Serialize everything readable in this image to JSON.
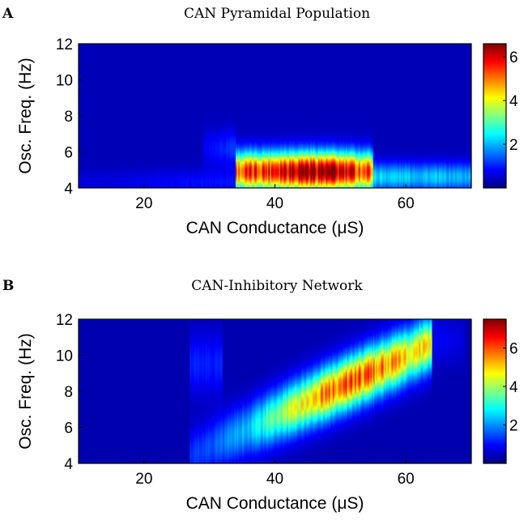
{
  "panels": [
    {
      "letter": "A",
      "title": "CAN Pyramidal Population",
      "xlabel": "CAN Conductance (μS)",
      "ylabel": "Osc. Freq. (Hz)"
    },
    {
      "letter": "B",
      "title": "CAN-Inhibitory Network",
      "xlabel": "CAN Conductance (μS)",
      "ylabel": "Osc. Freq. (Hz)"
    }
  ],
  "chart_data": [
    {
      "type": "heatmap",
      "title": "CAN Pyramidal Population",
      "xlabel": "CAN Conductance (μS)",
      "ylabel": "Osc. Freq. (Hz)",
      "xlim": [
        10,
        70
      ],
      "ylim": [
        4,
        12
      ],
      "xticks": [
        20,
        40,
        60
      ],
      "yticks": [
        4,
        6,
        8,
        10,
        12
      ],
      "colorbar": {
        "range": [
          0,
          6.6
        ],
        "ticks": [
          2,
          4,
          6
        ]
      },
      "colormap": "jet",
      "background_value": 0.35,
      "ridges": [
        {
          "x_start": 10,
          "x_end": 34,
          "peak_freq": 4.3,
          "freq_sd": 0.5,
          "amp_start": 0.2,
          "amp_end": 0.6
        },
        {
          "x_start": 29,
          "x_end": 34,
          "peak_freq": 6.2,
          "freq_sd": 0.7,
          "amp_start": 0.4,
          "amp_end": 0.9
        },
        {
          "x_start": 34,
          "x_end": 55,
          "peak_freq": 4.9,
          "freq_sd": 0.75,
          "amp_start": 4.6,
          "amp_end": 4.6,
          "amp_peak": 6.4,
          "peak_x": 45
        },
        {
          "x_start": 55,
          "x_end": 70,
          "peak_freq": 4.6,
          "freq_sd": 0.55,
          "amp_start": 1.9,
          "amp_end": 1.6
        }
      ]
    },
    {
      "type": "heatmap",
      "title": "CAN-Inhibitory Network",
      "xlabel": "CAN Conductance (μS)",
      "ylabel": "Osc. Freq. (Hz)",
      "xlim": [
        10,
        70
      ],
      "ylim": [
        4,
        12
      ],
      "xticks": [
        20,
        40,
        60
      ],
      "yticks": [
        4,
        6,
        8,
        10,
        12
      ],
      "colorbar": {
        "range": [
          0,
          7.5
        ],
        "ticks": [
          2,
          4,
          6
        ]
      },
      "colormap": "jet",
      "background_value": 0.35,
      "ridges": [
        {
          "x_start": 27,
          "x_end": 32,
          "peak_freq": 9.5,
          "freq_sd": 1.2,
          "amp_start": 0.8,
          "amp_end": 0.8
        },
        {
          "x_start": 27,
          "x_end": 64,
          "freq_start": 4.4,
          "freq_end": 10.6,
          "freq_sd": 1.0,
          "amp_start": 0.8,
          "amp_end": 2.4,
          "amp_peak": 5.6,
          "peak_x": 52
        },
        {
          "x_start": 62,
          "x_end": 69,
          "peak_freq": 10.8,
          "freq_sd": 0.9,
          "amp_start": 0.7,
          "amp_end": 0.3
        }
      ]
    }
  ]
}
